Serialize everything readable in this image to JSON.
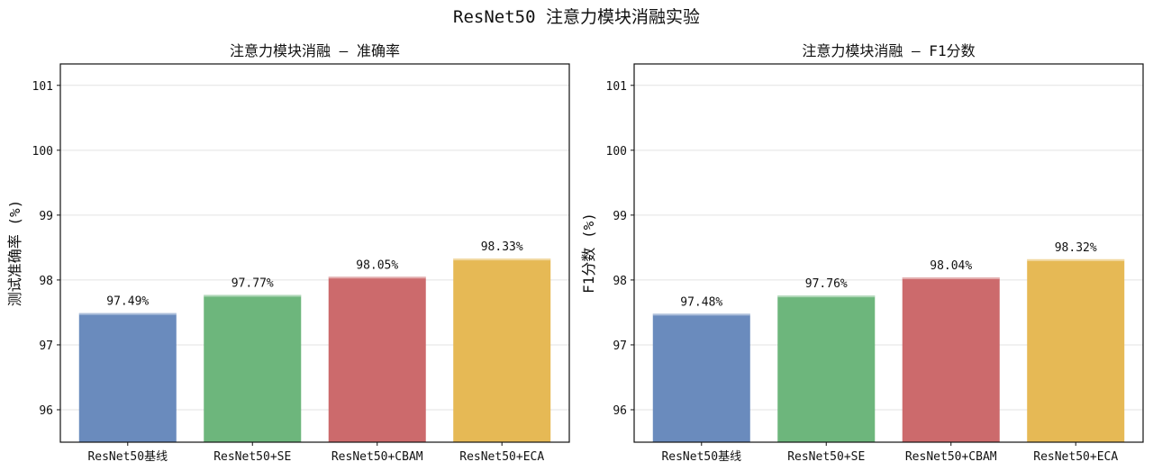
{
  "suptitle": "ResNet50 注意力模块消融实验",
  "chart_data": [
    {
      "type": "bar",
      "title": "注意力模块消融 — 准确率",
      "xlabel": "",
      "ylabel": "测试准确率 (%)",
      "categories": [
        "ResNet50基线",
        "ResNet50+SE",
        "ResNet50+CBAM",
        "ResNet50+ECA"
      ],
      "values": [
        97.49,
        97.77,
        98.05,
        98.33
      ],
      "data_labels": [
        "97.49%",
        "97.77%",
        "98.05%",
        "98.33%"
      ],
      "colors": [
        "#6a8bbd",
        "#6db67c",
        "#cc6a6c",
        "#e6b955"
      ],
      "ylim": [
        95.5,
        101.33
      ],
      "yticks": [
        96,
        97,
        98,
        99,
        100,
        101
      ],
      "grid": "y"
    },
    {
      "type": "bar",
      "title": "注意力模块消融 — F1分数",
      "xlabel": "",
      "ylabel": "F1分数 (%)",
      "categories": [
        "ResNet50基线",
        "ResNet50+SE",
        "ResNet50+CBAM",
        "ResNet50+ECA"
      ],
      "values": [
        97.48,
        97.76,
        98.04,
        98.32
      ],
      "data_labels": [
        "97.48%",
        "97.76%",
        "98.04%",
        "98.32%"
      ],
      "colors": [
        "#6a8bbd",
        "#6db67c",
        "#cc6a6c",
        "#e6b955"
      ],
      "ylim": [
        95.5,
        101.33
      ],
      "yticks": [
        96,
        97,
        98,
        99,
        100,
        101
      ],
      "grid": "y"
    }
  ]
}
